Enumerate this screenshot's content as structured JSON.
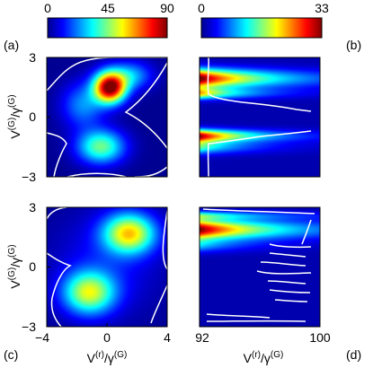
{
  "colors": {
    "contour": "#ffffff",
    "frame": "#000000"
  },
  "colorbars": [
    {
      "min": "0",
      "mid": "45",
      "max": "90",
      "colormap": "jet"
    },
    {
      "min": "0",
      "max": "33",
      "colormap": "jet"
    }
  ],
  "chart_data": [
    {
      "panel": "(a)",
      "type": "heatmap",
      "colorbar": 0,
      "xlim": [
        -4,
        4
      ],
      "ylim": [
        -3,
        3
      ],
      "yticks": [
        "3",
        "0",
        "−3"
      ],
      "ylabel": {
        "main": "V",
        "sup1": "(G)",
        "mid": "/γ",
        "sup2": "(G)"
      },
      "blobs": [
        {
          "x": 0.2,
          "y": 1.5,
          "sx": 0.75,
          "sy": 0.55,
          "peak": 90
        },
        {
          "x": -0.4,
          "y": -1.5,
          "sx": 1.1,
          "sy": 0.6,
          "peak": 42
        },
        {
          "x": -1.6,
          "y": 0.6,
          "sx": 1.0,
          "sy": 0.8,
          "peak": 22
        },
        {
          "x": 1.6,
          "y": 2.1,
          "sx": 1.0,
          "sy": 0.5,
          "peak": 25
        }
      ]
    },
    {
      "panel": "(b)",
      "type": "heatmap",
      "colorbar": 1,
      "xlim": [
        92,
        100
      ],
      "ylim": [
        -3,
        3
      ],
      "bands": [
        {
          "y": 1.95,
          "sy": 0.33,
          "peak": 33,
          "x0": 92,
          "decay": 4.5
        },
        {
          "y": 1.2,
          "sy": 0.2,
          "peak": 20,
          "x0": 92,
          "decay": 3.0
        },
        {
          "y": -0.95,
          "sy": 0.22,
          "peak": 30,
          "x0": 92,
          "decay": 3.5
        },
        {
          "y": -1.5,
          "sy": 0.25,
          "peak": 14,
          "x0": 92,
          "decay": 3.0
        }
      ]
    },
    {
      "panel": "(c)",
      "type": "heatmap",
      "colorbar": 0,
      "xlim": [
        -4,
        4
      ],
      "ylim": [
        -3,
        3
      ],
      "xticks": [
        "−4",
        "0",
        "4"
      ],
      "yticks": [
        "3",
        "0",
        "−3"
      ],
      "xlabel": {
        "main": "V",
        "sup1": "(r)",
        "mid": "/γ",
        "sup2": "(G)"
      },
      "ylabel": {
        "main": "V",
        "sup1": "(G)",
        "mid": "/γ",
        "sup2": "(G)"
      },
      "blobs": [
        {
          "x": 1.5,
          "y": 1.7,
          "sx": 1.2,
          "sy": 0.7,
          "peak": 55
        },
        {
          "x": -1.2,
          "y": -1.3,
          "sx": 1.2,
          "sy": 0.75,
          "peak": 48
        },
        {
          "x": 0.0,
          "y": 0.2,
          "sx": 2.5,
          "sy": 1.8,
          "peak": 10
        }
      ]
    },
    {
      "panel": "(d)",
      "type": "heatmap",
      "colorbar": 1,
      "xlim": [
        92,
        100
      ],
      "ylim": [
        -3,
        3
      ],
      "xticks": [
        "92",
        "100"
      ],
      "xlabel": {
        "main": "V",
        "sup1": "(r)",
        "mid": "/γ",
        "sup2": "(G)"
      },
      "bands": [
        {
          "y": 1.9,
          "sy": 0.35,
          "peak": 32,
          "x0": 92,
          "decay": 5.0
        },
        {
          "y": 2.6,
          "sy": 0.15,
          "peak": 12,
          "x0": 92,
          "decay": 5.0
        },
        {
          "y": 1.1,
          "sy": 0.25,
          "peak": 8,
          "x0": 92,
          "decay": 3.0
        }
      ]
    }
  ]
}
